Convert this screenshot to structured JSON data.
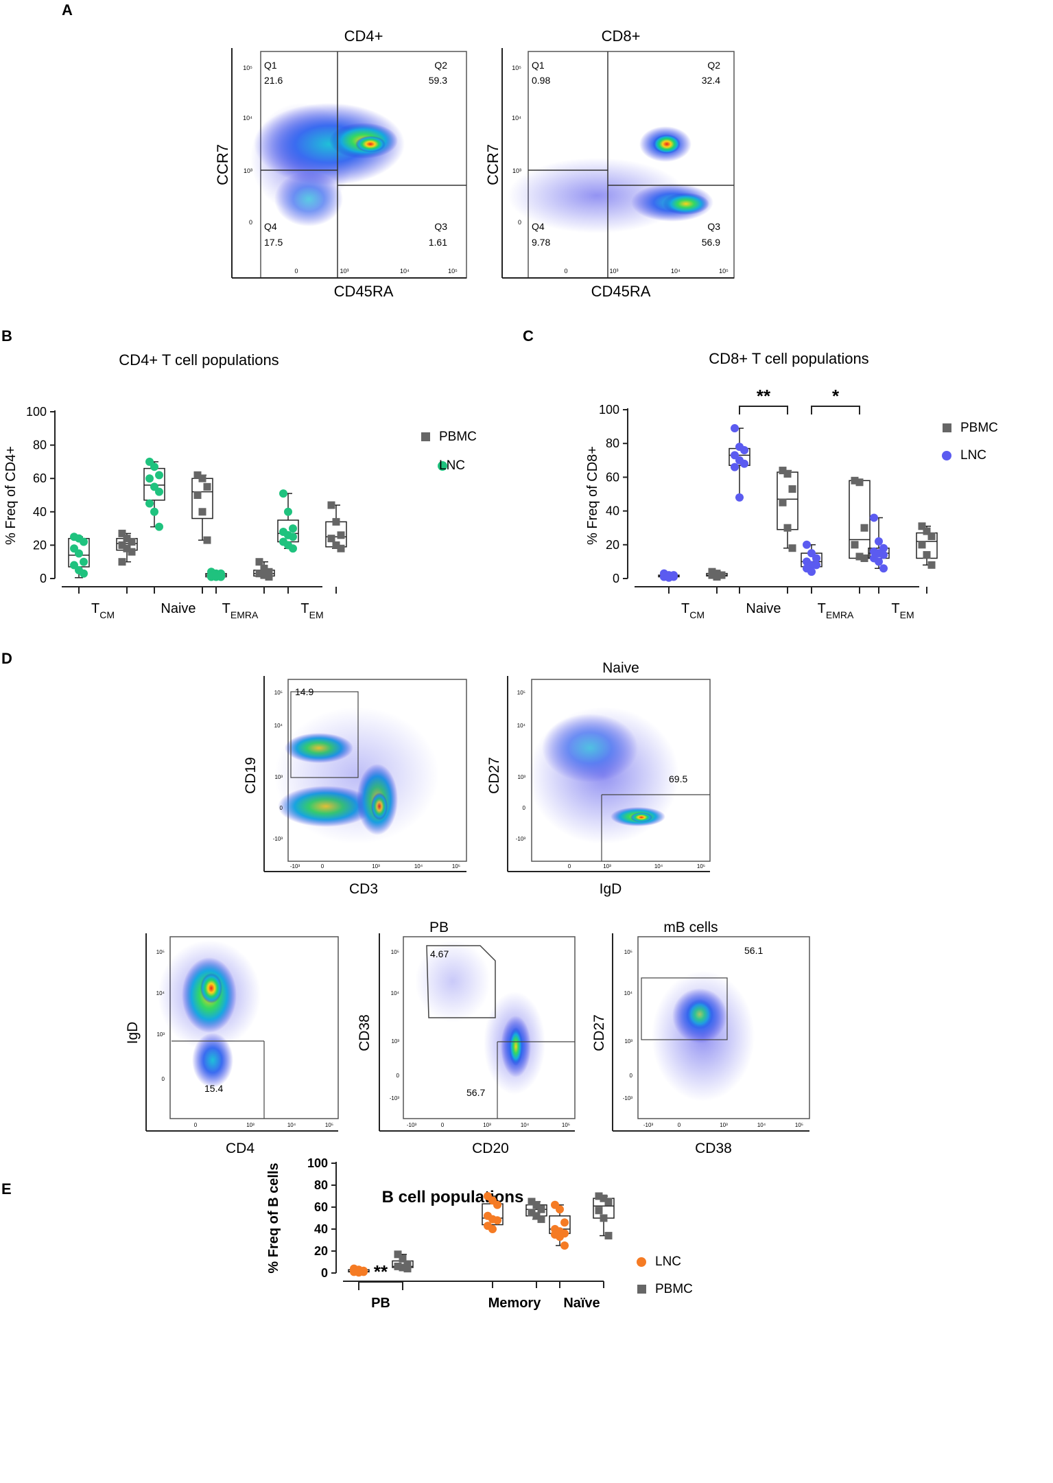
{
  "colors": {
    "lnc_cd4": "#1fc27e",
    "lnc_cd8": "#5b5bf0",
    "lnc_b": "#f57b24",
    "pbmc": "#666666",
    "axis": "#222222",
    "gate": "#444444"
  },
  "panel_labels": [
    "A",
    "B",
    "C",
    "D",
    "E"
  ],
  "panel_a": {
    "plots": [
      {
        "title": "CD4+",
        "xlabel": "CD45RA",
        "ylabel": "CCR7",
        "yticks": [
          "10⁵",
          "10⁴",
          "10³",
          "0"
        ],
        "xticks": [
          "0",
          "10³",
          "10⁴",
          "10⁵"
        ],
        "quadrants": [
          {
            "name": "Q1",
            "value": "21.6"
          },
          {
            "name": "Q2",
            "value": "59.3"
          },
          {
            "name": "Q4",
            "value": "17.5"
          },
          {
            "name": "Q3",
            "value": "1.61"
          }
        ]
      },
      {
        "title": "CD8+",
        "xlabel": "CD45RA",
        "ylabel": "CCR7",
        "yticks": [
          "10⁵",
          "10⁴",
          "10³",
          "0"
        ],
        "xticks": [
          "0",
          "10³",
          "10⁴",
          "10⁵"
        ],
        "quadrants": [
          {
            "name": "Q1",
            "value": "0.98"
          },
          {
            "name": "Q2",
            "value": "32.4"
          },
          {
            "name": "Q4",
            "value": "9.78"
          },
          {
            "name": "Q3",
            "value": "56.9"
          }
        ]
      }
    ]
  },
  "panel_d": {
    "plots": [
      {
        "title": "",
        "xlabel": "CD3",
        "ylabel": "CD19",
        "gate_value": "14.9",
        "extra_value": "",
        "yticks": [
          "10⁵",
          "10⁴",
          "10³",
          "0",
          "-10³"
        ],
        "xticks": [
          "-10³",
          "0",
          "10³",
          "10⁴",
          "10⁵"
        ]
      },
      {
        "title": "Naive",
        "xlabel": "IgD",
        "ylabel": "CD27",
        "gate_value": "69.5",
        "extra_value": "",
        "yticks": [
          "10⁵",
          "10⁴",
          "10³",
          "0",
          "-10³"
        ],
        "xticks": [
          "0",
          "10³",
          "10⁴",
          "10⁵"
        ]
      },
      {
        "title": "",
        "xlabel": "CD4",
        "ylabel": "IgD",
        "gate_value": "15.4",
        "extra_value": "",
        "yticks": [
          "10⁵",
          "10⁴",
          "10³",
          "0"
        ],
        "xticks": [
          "0",
          "10³",
          "10⁴",
          "10⁵"
        ]
      },
      {
        "title": "PB",
        "xlabel": "CD20",
        "ylabel": "CD38",
        "gate_value": "4.67",
        "extra_value": "56.7",
        "yticks": [
          "10⁵",
          "10⁴",
          "10³",
          "0",
          "-10³"
        ],
        "xticks": [
          "-10³",
          "0",
          "10³",
          "10⁴",
          "10⁵"
        ]
      },
      {
        "title": "mB cells",
        "xlabel": "CD38",
        "ylabel": "CD27",
        "gate_value": "56.1",
        "extra_value": "",
        "yticks": [
          "10⁵",
          "10⁴",
          "10³",
          "0",
          "-10³"
        ],
        "xticks": [
          "-10³",
          "0",
          "10³",
          "10⁴",
          "10⁵"
        ]
      }
    ]
  },
  "chart_data": [
    {
      "id": "B",
      "type": "box",
      "title": "CD4+ T cell populations",
      "ylabel": "% Freq of CD4+",
      "ylim": [
        0,
        100
      ],
      "yticks": [
        0,
        20,
        40,
        60,
        80,
        100
      ],
      "categories": [
        {
          "main": "T",
          "sub": "CM"
        },
        {
          "main": "Naive",
          "sub": ""
        },
        {
          "main": "T",
          "sub": "EMRA"
        },
        {
          "main": "T",
          "sub": "EM"
        }
      ],
      "legend": [
        "PBMC",
        "LNC"
      ],
      "series": [
        {
          "name": "LNC",
          "values": [
            [
              25,
              24,
              22,
              18,
              15,
              10,
              8,
              5,
              3
            ],
            [
              70,
              67,
              62,
              60,
              55,
              52,
              45,
              40,
              31
            ],
            [
              4,
              3,
              3,
              2,
              2,
              2,
              1,
              1,
              1
            ],
            [
              51,
              40,
              30,
              28,
              26,
              25,
              22,
              20,
              18
            ]
          ]
        },
        {
          "name": "PBMC",
          "values": [
            [
              27,
              24,
              22,
              20,
              18,
              16,
              10
            ],
            [
              62,
              60,
              55,
              50,
              40,
              23
            ],
            [
              10,
              6,
              4,
              3,
              2,
              1
            ],
            [
              44,
              34,
              26,
              24,
              20,
              18
            ]
          ]
        }
      ],
      "boxes": {
        "LNC": [
          [
            0.5,
            7,
            14,
            24,
            25
          ],
          [
            31,
            47,
            56,
            66,
            70
          ],
          [
            1,
            1,
            2,
            3,
            4
          ],
          [
            18,
            22,
            27,
            35,
            51
          ]
        ],
        "PBMC": [
          [
            10,
            17,
            21,
            24,
            27
          ],
          [
            23,
            36,
            52,
            60,
            62
          ],
          [
            1,
            1.5,
            3,
            5,
            10
          ],
          [
            18,
            19,
            25,
            34,
            44
          ]
        ]
      },
      "significance": []
    },
    {
      "id": "C",
      "type": "box",
      "title": "CD8+ T cell populations",
      "ylabel": "% Freq of CD8+",
      "ylim": [
        0,
        100
      ],
      "yticks": [
        0,
        20,
        40,
        60,
        80,
        100
      ],
      "categories": [
        {
          "main": "T",
          "sub": "CM"
        },
        {
          "main": "Naive",
          "sub": ""
        },
        {
          "main": "T",
          "sub": "EMRA"
        },
        {
          "main": "T",
          "sub": "EM"
        }
      ],
      "legend": [
        "PBMC",
        "LNC"
      ],
      "series": [
        {
          "name": "LNC",
          "values": [
            [
              3,
              2,
              2,
              1,
              1,
              1,
              1,
              0.5
            ],
            [
              89,
              78,
              76,
              73,
              70,
              68,
              66,
              48
            ],
            [
              20,
              15,
              12,
              10,
              8,
              8,
              6,
              4
            ],
            [
              36,
              22,
              18,
              16,
              15,
              14,
              12,
              10,
              6
            ]
          ]
        },
        {
          "name": "PBMC",
          "values": [
            [
              4,
              3,
              2,
              2,
              1
            ],
            [
              64,
              62,
              53,
              45,
              30,
              18
            ],
            [
              58,
              57,
              30,
              20,
              13,
              12
            ],
            [
              31,
              28,
              25,
              20,
              14,
              8
            ]
          ]
        }
      ],
      "boxes": {
        "LNC": [
          [
            0.5,
            1,
            1.5,
            2,
            3
          ],
          [
            48,
            67,
            73,
            77,
            89
          ],
          [
            4,
            7,
            10,
            15,
            20
          ],
          [
            6,
            12,
            15,
            18,
            36
          ]
        ],
        "PBMC": [
          [
            1,
            1.5,
            2,
            3,
            4
          ],
          [
            18,
            29,
            47,
            63,
            64
          ],
          [
            12,
            12,
            23,
            58,
            58
          ],
          [
            8,
            12,
            22,
            27,
            31
          ]
        ]
      },
      "significance": [
        {
          "label": "**",
          "group": 1
        },
        {
          "label": "*",
          "group": 2
        }
      ]
    },
    {
      "id": "E",
      "type": "box",
      "title": "B cell populations",
      "ylabel": "% Freq of B cells",
      "ylim": [
        0,
        100
      ],
      "yticks": [
        0,
        20,
        40,
        60,
        80,
        100
      ],
      "categories": [
        {
          "main": "PB",
          "sub": ""
        },
        {
          "main": "Memory",
          "sub": ""
        },
        {
          "main": "Naïve",
          "sub": ""
        }
      ],
      "legend": [
        "LNC",
        "PBMC"
      ],
      "series": [
        {
          "name": "LNC",
          "values": [
            [
              4,
              3,
              2,
              2,
              1,
              1,
              1,
              0.5
            ],
            [
              70,
              66,
              62,
              52,
              49,
              48,
              43,
              40
            ],
            [
              62,
              58,
              46,
              40,
              38,
              36,
              35,
              33,
              25
            ]
          ]
        },
        {
          "name": "PBMC",
          "values": [
            [
              17,
              13,
              8,
              6,
              5,
              4
            ],
            [
              65,
              62,
              58,
              55,
              52,
              49
            ],
            [
              70,
              68,
              65,
              57,
              50,
              34
            ]
          ]
        }
      ],
      "boxes": {
        "LNC": [
          [
            0.5,
            1,
            1.5,
            3,
            4
          ],
          [
            40,
            44,
            50,
            63,
            70
          ],
          [
            25,
            36,
            40,
            52,
            62
          ]
        ],
        "PBMC": [
          [
            4,
            5,
            6,
            11,
            17
          ],
          [
            49,
            52,
            58,
            62,
            65
          ],
          [
            34,
            50,
            61,
            68,
            70
          ]
        ]
      },
      "significance": [
        {
          "label": "**",
          "group": 0
        }
      ]
    }
  ]
}
